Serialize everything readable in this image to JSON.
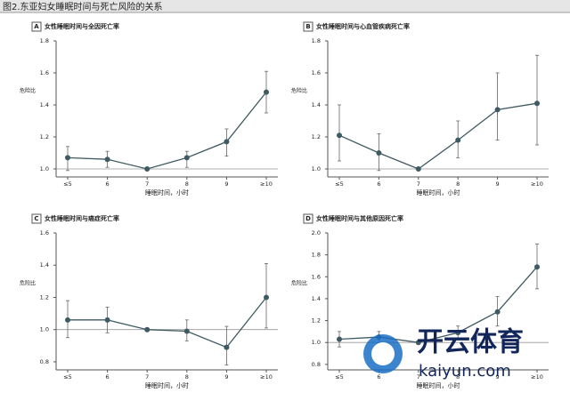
{
  "title": "图2.东亚妇女睡眠时间与死亡风险的关系",
  "watermark": {
    "name": "开云体育",
    "url": "kaiyun.com"
  },
  "chart_data": [
    {
      "type": "line",
      "panel": "A",
      "title": "女性睡眠时间与全因死亡率",
      "ylabel": "危险比",
      "xlabel": "睡眠时间，小时",
      "categories": [
        "≤5",
        "6",
        "7",
        "8",
        "9",
        "≥10"
      ],
      "series": [
        {
          "color": "#3f5a62",
          "values": [
            1.07,
            1.06,
            1.0,
            1.07,
            1.17,
            1.48
          ],
          "ci_lower": [
            0.99,
            1.01,
            1.0,
            1.01,
            1.08,
            1.35
          ],
          "ci_upper": [
            1.14,
            1.11,
            1.0,
            1.11,
            1.25,
            1.61
          ]
        }
      ],
      "ylim": [
        0.95,
        1.8
      ],
      "yticks": [
        {
          "value": 1,
          "label": "1.0"
        },
        1.2,
        1.4,
        1.6,
        1.8
      ],
      "reference_line": 1
    },
    {
      "type": "line",
      "panel": "B",
      "title": "女性睡眠时间与心血管疾病死亡率",
      "ylabel": "危险比",
      "xlabel": "睡眠时间，小时",
      "categories": [
        "≤5",
        "6",
        "7",
        "8",
        "9",
        "≥10"
      ],
      "series": [
        {
          "color": "#3f5a62",
          "values": [
            1.21,
            1.1,
            1.0,
            1.18,
            1.37,
            1.41
          ],
          "ci_lower": [
            1.05,
            0.99,
            1.0,
            1.07,
            1.18,
            1.15
          ],
          "ci_upper": [
            1.4,
            1.22,
            1.0,
            1.3,
            1.6,
            1.71
          ]
        }
      ],
      "ylim": [
        0.95,
        1.8
      ],
      "yticks": [
        {
          "value": 1,
          "label": "1.0"
        },
        1.2,
        1.4,
        1.6,
        1.8
      ],
      "reference_line": 1
    },
    {
      "type": "line",
      "panel": "C",
      "title": "女性睡眠时间与癌症死亡率",
      "ylabel": "危险比",
      "xlabel": "睡眠时间，小时",
      "categories": [
        "≤5",
        "6",
        "7",
        "8",
        "9",
        "≥10"
      ],
      "series": [
        {
          "color": "#3f5a62",
          "values": [
            1.06,
            1.06,
            1.0,
            0.99,
            0.89,
            1.2
          ],
          "ci_lower": [
            0.95,
            0.98,
            1.0,
            0.93,
            0.78,
            1.01
          ],
          "ci_upper": [
            1.18,
            1.14,
            1.0,
            1.06,
            1.02,
            1.41
          ]
        }
      ],
      "ylim": [
        0.75,
        1.6
      ],
      "yticks": [
        0.8,
        {
          "value": 1,
          "label": "1.0"
        },
        1.2,
        1.4,
        1.6
      ],
      "reference_line": 1
    },
    {
      "type": "line",
      "panel": "D",
      "title": "女性睡眠时间与其他原因死亡率",
      "ylabel": "危险比",
      "xlabel": "睡眠时间，小时",
      "categories": [
        "≤5",
        "6",
        "7",
        "8",
        "9",
        "≥10"
      ],
      "series": [
        {
          "color": "#3f5a62",
          "values": [
            1.03,
            1.05,
            1.0,
            1.09,
            1.28,
            1.69
          ],
          "ci_lower": [
            0.96,
            0.99,
            1.0,
            1.03,
            1.15,
            1.49
          ],
          "ci_upper": [
            1.1,
            1.1,
            1.0,
            1.15,
            1.42,
            1.9
          ]
        }
      ],
      "ylim": [
        0.75,
        2.0
      ],
      "yticks": [
        0.8,
        {
          "value": 1,
          "label": "1.0"
        },
        1.2,
        1.4,
        1.6,
        1.8,
        {
          "value": 2,
          "label": "2.0"
        }
      ],
      "reference_line": 1
    }
  ]
}
